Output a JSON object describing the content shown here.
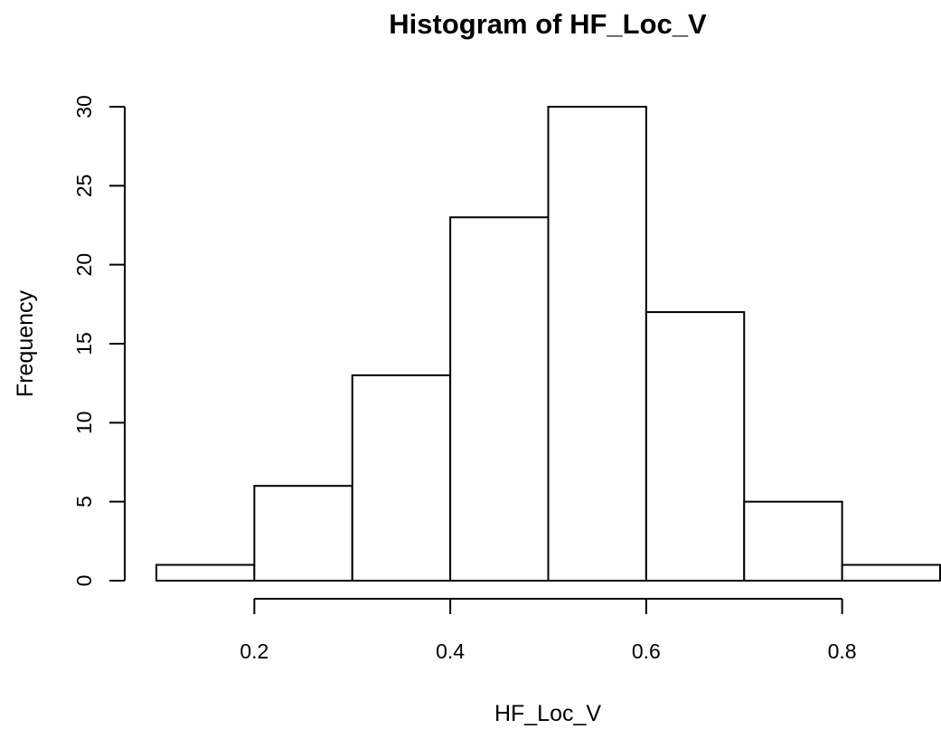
{
  "chart_data": {
    "type": "bar",
    "title": "Histogram of HF_Loc_V",
    "xlabel": "HF_Loc_V",
    "ylabel": "Frequency",
    "bins": [
      {
        "start": 0.1,
        "end": 0.2,
        "count": 1
      },
      {
        "start": 0.2,
        "end": 0.3,
        "count": 6
      },
      {
        "start": 0.3,
        "end": 0.4,
        "count": 13
      },
      {
        "start": 0.4,
        "end": 0.5,
        "count": 23
      },
      {
        "start": 0.5,
        "end": 0.6,
        "count": 30
      },
      {
        "start": 0.6,
        "end": 0.7,
        "count": 17
      },
      {
        "start": 0.7,
        "end": 0.8,
        "count": 5
      },
      {
        "start": 0.8,
        "end": 0.9,
        "count": 1
      }
    ],
    "xlim": [
      0.1,
      0.9
    ],
    "ylim": [
      0,
      30
    ],
    "x_ticks": [
      0.2,
      0.4,
      0.6,
      0.8
    ],
    "x_tick_labels": [
      "0.2",
      "0.4",
      "0.6",
      "0.8"
    ],
    "y_ticks": [
      0,
      5,
      10,
      15,
      20,
      25,
      30
    ],
    "y_tick_labels": [
      "0",
      "5",
      "10",
      "15",
      "20",
      "25",
      "30"
    ],
    "grid": false,
    "legend": "none",
    "colors": {
      "bar_fill": "#ffffff",
      "bar_stroke": "#000000",
      "text": "#000000"
    }
  }
}
